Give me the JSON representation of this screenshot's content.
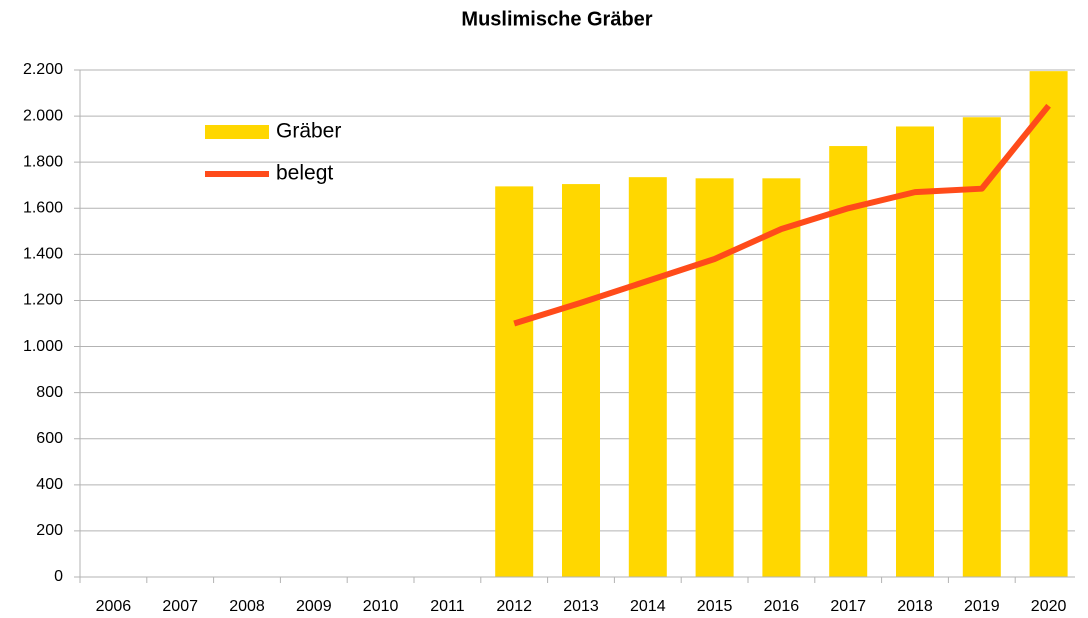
{
  "chart_data": {
    "type": "bar",
    "title": "Muslimische Gräber",
    "categories": [
      "2006",
      "2007",
      "2008",
      "2009",
      "2010",
      "2011",
      "2012",
      "2013",
      "2014",
      "2015",
      "2016",
      "2017",
      "2018",
      "2019",
      "2020"
    ],
    "series": [
      {
        "name": "Gräber",
        "type": "bar",
        "color": "#ffd700",
        "values": [
          null,
          null,
          null,
          null,
          null,
          null,
          1695,
          1705,
          1735,
          1730,
          1730,
          1870,
          1955,
          1995,
          2195
        ]
      },
      {
        "name": "belegt",
        "type": "line",
        "color": "#ff4b1a",
        "values": [
          null,
          null,
          null,
          null,
          null,
          null,
          1100,
          1190,
          1285,
          1380,
          1510,
          1600,
          1670,
          1685,
          2045
        ]
      }
    ],
    "ylim": [
      0,
      2200
    ],
    "yticks": [
      0,
      200,
      400,
      600,
      800,
      {
        "value": 1000,
        "label": "1.000"
      },
      {
        "value": 1200,
        "label": "1.200"
      },
      {
        "value": 1400,
        "label": "1.400"
      },
      {
        "value": 1600,
        "label": "1.600"
      },
      {
        "value": 1800,
        "label": "1.800"
      },
      {
        "value": 2000,
        "label": "2.000"
      },
      {
        "value": 2200,
        "label": "2.200"
      }
    ],
    "grid": true,
    "legend": "upper left"
  }
}
